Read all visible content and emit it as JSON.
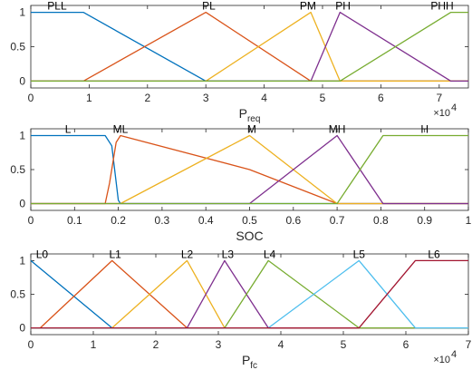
{
  "chart_data": [
    {
      "type": "line",
      "xlabel": "P",
      "xlabel_sub": "req",
      "exponent_label": "×10",
      "exponent_power": "4",
      "xlim": [
        0,
        7.5
      ],
      "ylim": [
        0,
        1
      ],
      "xticks": [
        0,
        1,
        2,
        3,
        4,
        5,
        6,
        7
      ],
      "xtick_labels": [
        "0",
        "1",
        "2",
        "3",
        "4",
        "5",
        "6",
        "7"
      ],
      "yticks": [
        0,
        0.5,
        1
      ],
      "ytick_labels": [
        "0",
        "0.5",
        "1"
      ],
      "series": [
        {
          "name": "PLL",
          "color": "#0072BD",
          "points": [
            [
              0,
              1
            ],
            [
              0.9,
              1
            ],
            [
              3.0,
              0
            ],
            [
              7.5,
              0
            ]
          ],
          "label_at": [
            0.45,
            1.0
          ]
        },
        {
          "name": "PL",
          "color": "#D95319",
          "points": [
            [
              0,
              0
            ],
            [
              0.9,
              0
            ],
            [
              3.0,
              1
            ],
            [
              4.8,
              0
            ],
            [
              7.5,
              0
            ]
          ],
          "label_at": [
            3.05,
            1.0
          ]
        },
        {
          "name": "PM",
          "color": "#EDB120",
          "points": [
            [
              0,
              0
            ],
            [
              3.0,
              0
            ],
            [
              4.8,
              1
            ],
            [
              5.3,
              0
            ],
            [
              7.5,
              0
            ]
          ],
          "label_at": [
            4.75,
            1.0
          ]
        },
        {
          "name": "PH",
          "color": "#7E2F8E",
          "points": [
            [
              0,
              0
            ],
            [
              4.8,
              0
            ],
            [
              5.3,
              1
            ],
            [
              7.2,
              0
            ],
            [
              7.5,
              0
            ]
          ],
          "label_at": [
            5.35,
            1.0
          ]
        },
        {
          "name": "PHH",
          "color": "#77AC30",
          "points": [
            [
              0,
              0
            ],
            [
              5.3,
              0
            ],
            [
              7.2,
              1
            ],
            [
              7.5,
              1
            ]
          ],
          "label_at": [
            7.05,
            1.0
          ]
        }
      ]
    },
    {
      "type": "line",
      "xlabel": "SOC",
      "xlim": [
        0,
        1
      ],
      "ylim": [
        0,
        1
      ],
      "xticks": [
        0,
        0.1,
        0.2,
        0.3,
        0.4,
        0.5,
        0.6,
        0.7,
        0.8,
        0.9,
        1
      ],
      "xtick_labels": [
        "0",
        "0.1",
        "0.2",
        "0.3",
        "0.4",
        "0.5",
        "0.6",
        "0.7",
        "0.8",
        "0.9",
        "1"
      ],
      "yticks": [
        0,
        0.5,
        1
      ],
      "ytick_labels": [
        "0",
        "0.5",
        "1"
      ],
      "series": [
        {
          "name": "L",
          "color": "#0072BD",
          "points": [
            [
              0,
              1
            ],
            [
              0.17,
              1
            ],
            [
              0.185,
              0.85
            ],
            [
              0.2,
              0.05
            ],
            [
              0.205,
              0
            ],
            [
              1,
              0
            ]
          ],
          "label_at": [
            0.085,
            1.0
          ]
        },
        {
          "name": "ML",
          "color": "#D95319",
          "points": [
            [
              0,
              0
            ],
            [
              0.17,
              0
            ],
            [
              0.18,
              0.3
            ],
            [
              0.195,
              0.9
            ],
            [
              0.205,
              1
            ],
            [
              0.5,
              0.5
            ],
            [
              0.7,
              0
            ],
            [
              1,
              0
            ]
          ],
          "label_at": [
            0.205,
            1.0
          ]
        },
        {
          "name": "M",
          "color": "#EDB120",
          "points": [
            [
              0,
              0
            ],
            [
              0.205,
              0
            ],
            [
              0.5,
              1
            ],
            [
              0.7,
              0
            ],
            [
              1,
              0
            ]
          ],
          "label_at": [
            0.505,
            1.0
          ]
        },
        {
          "name": "MH",
          "color": "#7E2F8E",
          "points": [
            [
              0,
              0
            ],
            [
              0.5,
              0
            ],
            [
              0.7,
              1
            ],
            [
              0.805,
              0
            ],
            [
              1,
              0
            ]
          ],
          "label_at": [
            0.7,
            1.0
          ]
        },
        {
          "name": "H",
          "color": "#77AC30",
          "points": [
            [
              0,
              0
            ],
            [
              0.7,
              0
            ],
            [
              0.805,
              1
            ],
            [
              1,
              1
            ]
          ],
          "label_at": [
            0.9,
            1.0
          ]
        }
      ]
    },
    {
      "type": "line",
      "xlabel": "P",
      "xlabel_sub": "fc",
      "exponent_label": "×10",
      "exponent_power": "4",
      "xlim": [
        0,
        7
      ],
      "ylim": [
        0,
        1
      ],
      "xticks": [
        0,
        1,
        2,
        3,
        4,
        5,
        6,
        7
      ],
      "xtick_labels": [
        "0",
        "1",
        "2",
        "3",
        "4",
        "5",
        "6",
        "7"
      ],
      "yticks": [
        0,
        0.5,
        1
      ],
      "ytick_labels": [
        "0",
        "0.5",
        "1"
      ],
      "series": [
        {
          "name": "L0",
          "color": "#0072BD",
          "points": [
            [
              0,
              1
            ],
            [
              1.3,
              0
            ],
            [
              7,
              0
            ]
          ],
          "label_at": [
            0.18,
            1.0
          ]
        },
        {
          "name": "L1",
          "color": "#D95319",
          "points": [
            [
              0,
              0
            ],
            [
              0.15,
              0
            ],
            [
              1.3,
              1
            ],
            [
              2.5,
              0
            ],
            [
              7,
              0
            ]
          ],
          "label_at": [
            1.35,
            1.0
          ]
        },
        {
          "name": "L2",
          "color": "#EDB120",
          "points": [
            [
              0,
              0
            ],
            [
              1.3,
              0
            ],
            [
              2.5,
              1
            ],
            [
              3.1,
              0
            ],
            [
              7,
              0
            ]
          ],
          "label_at": [
            2.5,
            1.0
          ]
        },
        {
          "name": "L3",
          "color": "#7E2F8E",
          "points": [
            [
              0,
              0
            ],
            [
              2.5,
              0
            ],
            [
              3.1,
              1
            ],
            [
              3.8,
              0
            ],
            [
              7,
              0
            ]
          ],
          "label_at": [
            3.15,
            1.0
          ]
        },
        {
          "name": "L4",
          "color": "#77AC30",
          "points": [
            [
              0,
              0
            ],
            [
              3.1,
              0
            ],
            [
              3.8,
              1
            ],
            [
              5.25,
              0
            ],
            [
              7,
              0
            ]
          ],
          "label_at": [
            3.82,
            1.0
          ]
        },
        {
          "name": "L5",
          "color": "#4DBEEE",
          "points": [
            [
              0,
              0
            ],
            [
              3.8,
              0
            ],
            [
              5.25,
              1
            ],
            [
              6.15,
              0
            ],
            [
              7,
              0
            ]
          ],
          "label_at": [
            5.25,
            1.0
          ]
        },
        {
          "name": "L6",
          "color": "#A2142F",
          "points": [
            [
              0,
              0
            ],
            [
              5.25,
              0
            ],
            [
              6.15,
              1
            ],
            [
              7,
              1
            ]
          ],
          "label_at": [
            6.45,
            1.0
          ]
        }
      ]
    }
  ]
}
